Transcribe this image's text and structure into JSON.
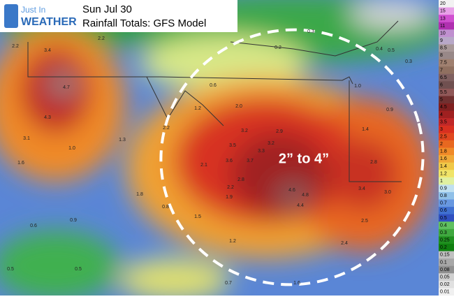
{
  "header": {
    "logo_top": "Just In",
    "logo_bottom": "WEATHER",
    "title": "Sun Jul 30",
    "subtitle": "Rainfall Totals: GFS Model"
  },
  "annotation": "2” to 4”",
  "map_labels": [
    "3.4",
    "2.2",
    "4.7",
    "4.3",
    "3.1",
    "1.0",
    "1.6",
    "2.2",
    "2.2",
    "1.2",
    "1.3",
    "0.6",
    "2.0",
    "3.2",
    "3.5",
    "3.6",
    "3.3",
    "3.2",
    "3.7",
    "2.9",
    "2.8",
    "2.2",
    "1.9",
    "2.1",
    "1.8",
    "0.8",
    "1.5",
    "4.6",
    "4.8",
    "4.4",
    "3.4",
    "3.0",
    "2.8",
    "1.4",
    "0.9",
    "1.0",
    "2.5",
    "2.4",
    "0.3",
    "0.4",
    "0.5",
    "0.3",
    "0.2",
    "0.9",
    "0.6",
    "0.5",
    "0.5",
    "0.7",
    "1.2",
    "1.6"
  ],
  "legend": [
    {
      "label": "20",
      "color": "#f2f2f2"
    },
    {
      "label": "15",
      "color": "#e8a0e8"
    },
    {
      "label": "13",
      "color": "#d050d0"
    },
    {
      "label": "11",
      "color": "#b030b0"
    },
    {
      "label": "10",
      "color": "#c090d0"
    },
    {
      "label": "9",
      "color": "#b8a8c8"
    },
    {
      "label": "8.5",
      "color": "#a89898"
    },
    {
      "label": "8",
      "color": "#988888"
    },
    {
      "label": "7.5",
      "color": "#a08070"
    },
    {
      "label": "7",
      "color": "#907060"
    },
    {
      "label": "6.5",
      "color": "#806060"
    },
    {
      "label": "6",
      "color": "#705050"
    },
    {
      "label": "5.5",
      "color": "#905858"
    },
    {
      "label": "5",
      "color": "#703030"
    },
    {
      "label": "4.5",
      "color": "#802020"
    },
    {
      "label": "4",
      "color": "#a02020"
    },
    {
      "label": "3.5",
      "color": "#c02828"
    },
    {
      "label": "3",
      "color": "#d83020"
    },
    {
      "label": "2.5",
      "color": "#e04820"
    },
    {
      "label": "2",
      "color": "#e86820"
    },
    {
      "label": "1.8",
      "color": "#f08a28"
    },
    {
      "label": "1.6",
      "color": "#f0a838"
    },
    {
      "label": "1.4",
      "color": "#f0c848"
    },
    {
      "label": "1.2",
      "color": "#f0e468"
    },
    {
      "label": "1",
      "color": "#e0f0a0"
    },
    {
      "label": "0.9",
      "color": "#c0e0f0"
    },
    {
      "label": "0.8",
      "color": "#90c0e8"
    },
    {
      "label": "0.7",
      "color": "#6898e0"
    },
    {
      "label": "0.6",
      "color": "#4070d0"
    },
    {
      "label": "0.5",
      "color": "#3050c0"
    },
    {
      "label": "0.4",
      "color": "#60c060"
    },
    {
      "label": "0.3",
      "color": "#40a840"
    },
    {
      "label": "0.25",
      "color": "#209020"
    },
    {
      "label": "0.2",
      "color": "#108010"
    },
    {
      "label": "0.15",
      "color": "#c0c0c0"
    },
    {
      "label": "0.1",
      "color": "#a8a8a8"
    },
    {
      "label": "0.08",
      "color": "#909090"
    },
    {
      "label": "0.05",
      "color": "#d0d0d0"
    },
    {
      "label": "0.02",
      "color": "#e0e0e0"
    },
    {
      "label": "0.01",
      "color": "#f0f0f0"
    }
  ]
}
